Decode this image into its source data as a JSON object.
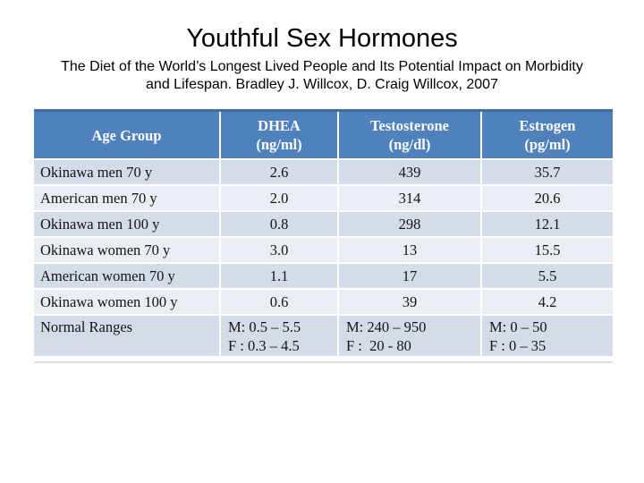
{
  "slide": {
    "title": "Youthful Sex Hormones",
    "subtitle_line1": "The Diet of the World’s Longest Lived People and Its Potential Impact on Morbidity",
    "subtitle_line2": "and Lifespan. Bradley J. Willcox, D. Craig Willcox, 2007"
  },
  "table": {
    "header": {
      "age_group": "Age Group",
      "dhea": "DHEA\n(ng/ml)",
      "testosterone": "Testosterone\n(ng/dl)",
      "estrogen": "Estrogen\n(pg/ml)"
    },
    "rows": [
      {
        "c0": "Okinawa men 70 y",
        "c1": "2.6",
        "c2": "439",
        "c3": "35.7"
      },
      {
        "c0": "American men 70 y",
        "c1": "2.0",
        "c2": "314",
        "c3": "20.6"
      },
      {
        "c0": "Okinawa men 100 y",
        "c1": "0.8",
        "c2": "298",
        "c3": "12.1"
      },
      {
        "c0": "Okinawa women 70 y",
        "c1": "3.0",
        "c2": "13",
        "c3": "15.5"
      },
      {
        "c0": "American women 70 y",
        "c1": "1.1",
        "c2": "17",
        "c3": "5.5"
      },
      {
        "c0": "Okinawa women 100 y",
        "c1": "0.6",
        "c2": "39",
        "c3": "4.2"
      },
      {
        "c0": "Normal Ranges",
        "c1": "M: 0.5 – 5.5\nF : 0.3 – 4.5",
        "c2": "M: 240 – 950\nF :  20 - 80",
        "c3": "M: 0 – 50\nF : 0 – 35"
      }
    ]
  },
  "colors": {
    "header_bg": "#4F81BD",
    "header_text": "#FFFFFF",
    "top_border": "#3E6CA4",
    "band_dark": "#D5DCE9",
    "band_light": "#EAEDF4",
    "row_separator": "#FFFFFF",
    "bottom_line": "#D9DDE6",
    "body_text": "#141414"
  },
  "chart_data": {
    "type": "table",
    "title": "Youthful Sex Hormones",
    "subtitle": "The Diet of the World’s Longest Lived People and Its Potential Impact on Morbidity and Lifespan. Bradley J. Willcox, D. Craig Willcox, 2007",
    "columns": [
      "Age Group",
      "DHEA (ng/ml)",
      "Testosterone (ng/dl)",
      "Estrogen (pg/ml)"
    ],
    "rows": [
      [
        "Okinawa men 70 y",
        2.6,
        439,
        35.7
      ],
      [
        "American men 70 y",
        2.0,
        314,
        20.6
      ],
      [
        "Okinawa men 100 y",
        0.8,
        298,
        12.1
      ],
      [
        "Okinawa women 70 y",
        3.0,
        13,
        15.5
      ],
      [
        "American women 70 y",
        1.1,
        17,
        5.5
      ],
      [
        "Okinawa women 100 y",
        0.6,
        39,
        4.2
      ],
      [
        "Normal Ranges",
        "M: 0.5 – 5.5; F: 0.3 – 4.5",
        "M: 240 – 950; F: 20 - 80",
        "M: 0 – 50; F: 0 – 35"
      ]
    ]
  }
}
